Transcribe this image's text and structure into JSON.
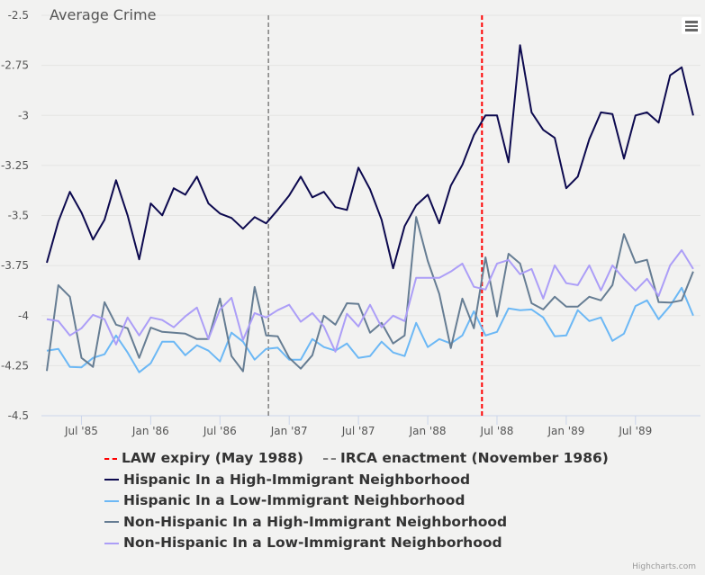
{
  "chart_data": {
    "type": "line",
    "title": "Average Crime",
    "xlabel": "",
    "ylabel": "",
    "ylim": [
      -4.5,
      -2.5
    ],
    "yticks": [
      "-2.5",
      "-2.75",
      "-3",
      "-3.25",
      "-3.5",
      "-3.75",
      "-4",
      "-4.25",
      "-4.5"
    ],
    "ytick_values": [
      -2.5,
      -2.75,
      -3,
      -3.25,
      -3.5,
      -3.75,
      -4,
      -4.25,
      -4.5
    ],
    "xticks": [
      "Jul '85",
      "Jan '86",
      "Jul '86",
      "Jan '87",
      "Jul '87",
      "Jan '88",
      "Jul '88",
      "Jan '89",
      "Jul '89"
    ],
    "xtick_months": [
      3,
      9,
      15,
      21,
      27,
      33,
      39,
      45,
      51
    ],
    "x_start": "Apr 1985",
    "x_end": "Dec 1989",
    "grid": true,
    "legend_position": "bottom",
    "plot_lines": [
      {
        "name": "LAW expiry (May 1988)",
        "month_index": 37.7,
        "color": "#ff0000",
        "style": "dash"
      },
      {
        "name": "IRCA enactment (November 1986)",
        "month_index": 19.2,
        "color": "#808080",
        "style": "dash"
      }
    ],
    "series": [
      {
        "name": "Hispanic In a High-Immigrant Neighborhood",
        "color": "#0d0a4f",
        "values": [
          -3.736,
          -3.53,
          -3.382,
          -3.485,
          -3.62,
          -3.521,
          -3.324,
          -3.499,
          -3.719,
          -3.44,
          -3.499,
          -3.364,
          -3.396,
          -3.306,
          -3.44,
          -3.49,
          -3.512,
          -3.566,
          -3.508,
          -3.539,
          -3.472,
          -3.4,
          -3.306,
          -3.409,
          -3.382,
          -3.458,
          -3.472,
          -3.261,
          -3.369,
          -3.521,
          -3.764,
          -3.553,
          -3.449,
          -3.396,
          -3.539,
          -3.351,
          -3.247,
          -3.099,
          -3.0,
          -3.0,
          -3.234,
          -2.649,
          -2.985,
          -3.072,
          -3.112,
          -3.364,
          -3.306,
          -3.119,
          -2.985,
          -2.993,
          -3.216,
          -3.0,
          -2.985,
          -3.036,
          -2.8,
          -2.76,
          -3.0
        ]
      },
      {
        "name": "Hispanic In a Low-Immigrant Neighborhood",
        "color": "#6cb8f5",
        "values": [
          -4.175,
          -4.166,
          -4.256,
          -4.258,
          -4.211,
          -4.193,
          -4.099,
          -4.184,
          -4.283,
          -4.238,
          -4.13,
          -4.13,
          -4.198,
          -4.148,
          -4.175,
          -4.229,
          -4.085,
          -4.13,
          -4.22,
          -4.166,
          -4.16,
          -4.22,
          -4.22,
          -4.117,
          -4.157,
          -4.175,
          -4.139,
          -4.211,
          -4.202,
          -4.13,
          -4.184,
          -4.202,
          -4.036,
          -4.157,
          -4.117,
          -4.139,
          -4.099,
          -3.978,
          -4.099,
          -4.081,
          -3.964,
          -3.973,
          -3.969,
          -4.009,
          -4.103,
          -4.099,
          -3.973,
          -4.027,
          -4.009,
          -4.126,
          -4.09,
          -3.952,
          -3.924,
          -4.018,
          -3.951,
          -3.861,
          -4.0
        ]
      },
      {
        "name": "Non-Hispanic In a High-Immigrant Neighborhood",
        "color": "#667d93",
        "values": [
          -4.276,
          -3.848,
          -3.906,
          -4.211,
          -4.256,
          -3.933,
          -4.045,
          -4.063,
          -4.211,
          -4.06,
          -4.081,
          -4.085,
          -4.09,
          -4.117,
          -4.117,
          -3.915,
          -4.202,
          -4.278,
          -3.857,
          -4.099,
          -4.103,
          -4.211,
          -4.265,
          -4.198,
          -4.0,
          -4.045,
          -3.938,
          -3.942,
          -4.085,
          -4.036,
          -4.139,
          -4.099,
          -3.507,
          -3.727,
          -3.892,
          -4.162,
          -3.915,
          -4.063,
          -3.709,
          -4.004,
          -3.691,
          -3.74,
          -3.938,
          -3.969,
          -3.906,
          -3.955,
          -3.955,
          -3.906,
          -3.924,
          -3.848,
          -3.593,
          -3.736,
          -3.721,
          -3.933,
          -3.935,
          -3.924,
          -3.78
        ]
      },
      {
        "name": "Non-Hispanic In a Low-Immigrant Neighborhood",
        "color": "#ac9ef7",
        "values": [
          -4.018,
          -4.027,
          -4.099,
          -4.063,
          -3.996,
          -4.018,
          -4.144,
          -4.009,
          -4.099,
          -4.009,
          -4.022,
          -4.058,
          -4.004,
          -3.96,
          -4.117,
          -3.969,
          -3.911,
          -4.121,
          -3.987,
          -4.009,
          -3.973,
          -3.946,
          -4.031,
          -3.987,
          -4.054,
          -4.18,
          -3.991,
          -4.054,
          -3.946,
          -4.058,
          -4.0,
          -4.027,
          -3.811,
          -3.811,
          -3.811,
          -3.78,
          -3.74,
          -3.856,
          -3.87,
          -3.74,
          -3.722,
          -3.793,
          -3.767,
          -3.915,
          -3.749,
          -3.838,
          -3.848,
          -3.749,
          -3.874,
          -3.749,
          -3.816,
          -3.875,
          -3.816,
          -3.902,
          -3.749,
          -3.673,
          -3.767
        ]
      }
    ]
  },
  "legend": {
    "plot_line_items": [
      "LAW expiry (May 1988)",
      "IRCA enactment (November 1986)"
    ],
    "series_items": [
      "Hispanic In a High-Immigrant Neighborhood",
      "Hispanic In a Low-Immigrant Neighborhood",
      "Non-Hispanic In a High-Immigrant Neighborhood",
      "Non-Hispanic In a Low-Immigrant Neighborhood"
    ]
  },
  "menu": {
    "icon": "hamburger-menu-icon"
  },
  "credits": "Highcharts.com"
}
